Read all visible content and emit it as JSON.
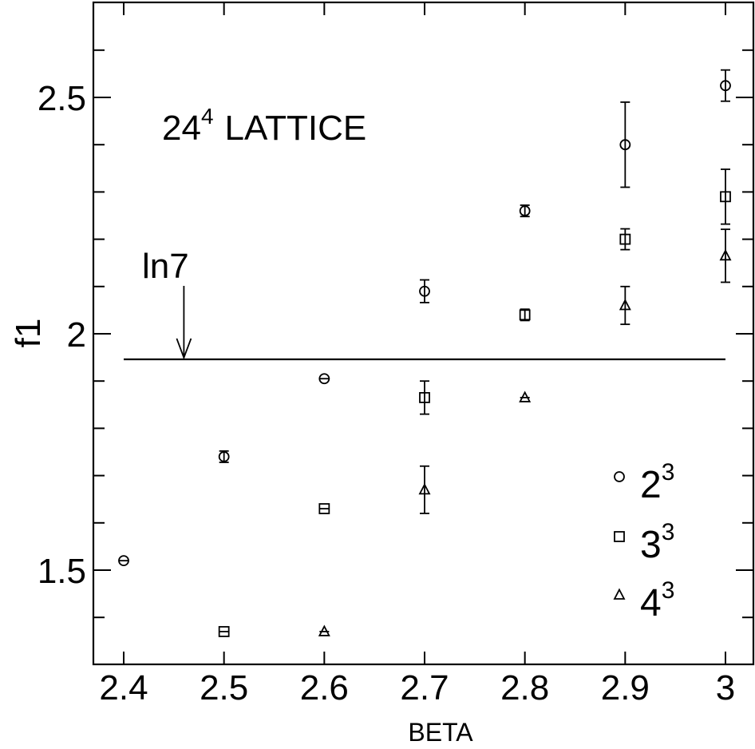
{
  "chart_data": {
    "type": "scatter",
    "title": "",
    "xlabel": "BETA",
    "ylabel": "f1",
    "xlim": [
      2.37,
      3.03
    ],
    "ylim": [
      1.3,
      2.7
    ],
    "x_ticks": [
      "2.4",
      "2.5",
      "2.6",
      "2.7",
      "2.8",
      "2.9",
      "3"
    ],
    "y_ticks": [
      "1.5",
      "2",
      "2.5"
    ],
    "grid": false,
    "legend_position": "bottom-right",
    "annotations": {
      "lattice_base": "24",
      "lattice_exp": "4",
      "lattice_rest": "LATTICE",
      "ln7_label": "ln7"
    },
    "reference_line": {
      "y": 1.946,
      "x_start": 2.4,
      "x_end": 3.0,
      "label": "ln7",
      "arrow_x": 2.46
    },
    "series": [
      {
        "name": "2",
        "exponent": "3",
        "marker": "circle",
        "points": [
          {
            "x": 2.4,
            "y": 1.52,
            "err": 0.0
          },
          {
            "x": 2.5,
            "y": 1.74,
            "err": 0.012
          },
          {
            "x": 2.6,
            "y": 1.905,
            "err": 0.0
          },
          {
            "x": 2.7,
            "y": 2.09,
            "err": 0.024
          },
          {
            "x": 2.8,
            "y": 2.26,
            "err": 0.012
          },
          {
            "x": 2.9,
            "y": 2.4,
            "err": 0.09
          },
          {
            "x": 3.0,
            "y": 2.525,
            "err": 0.033
          }
        ]
      },
      {
        "name": "3",
        "exponent": "3",
        "marker": "square",
        "points": [
          {
            "x": 2.5,
            "y": 1.37,
            "err": 0.0
          },
          {
            "x": 2.6,
            "y": 1.63,
            "err": 0.0
          },
          {
            "x": 2.7,
            "y": 1.865,
            "err": 0.035
          },
          {
            "x": 2.8,
            "y": 2.04,
            "err": 0.012
          },
          {
            "x": 2.9,
            "y": 2.2,
            "err": 0.022
          },
          {
            "x": 3.0,
            "y": 2.29,
            "err": 0.058
          }
        ]
      },
      {
        "name": "4",
        "exponent": "3",
        "marker": "triangle",
        "points": [
          {
            "x": 2.6,
            "y": 1.37,
            "err": 0.0
          },
          {
            "x": 2.7,
            "y": 1.67,
            "err": 0.05
          },
          {
            "x": 2.8,
            "y": 1.865,
            "err": 0.0
          },
          {
            "x": 2.9,
            "y": 2.06,
            "err": 0.04
          },
          {
            "x": 3.0,
            "y": 2.165,
            "err": 0.056
          }
        ]
      }
    ]
  }
}
